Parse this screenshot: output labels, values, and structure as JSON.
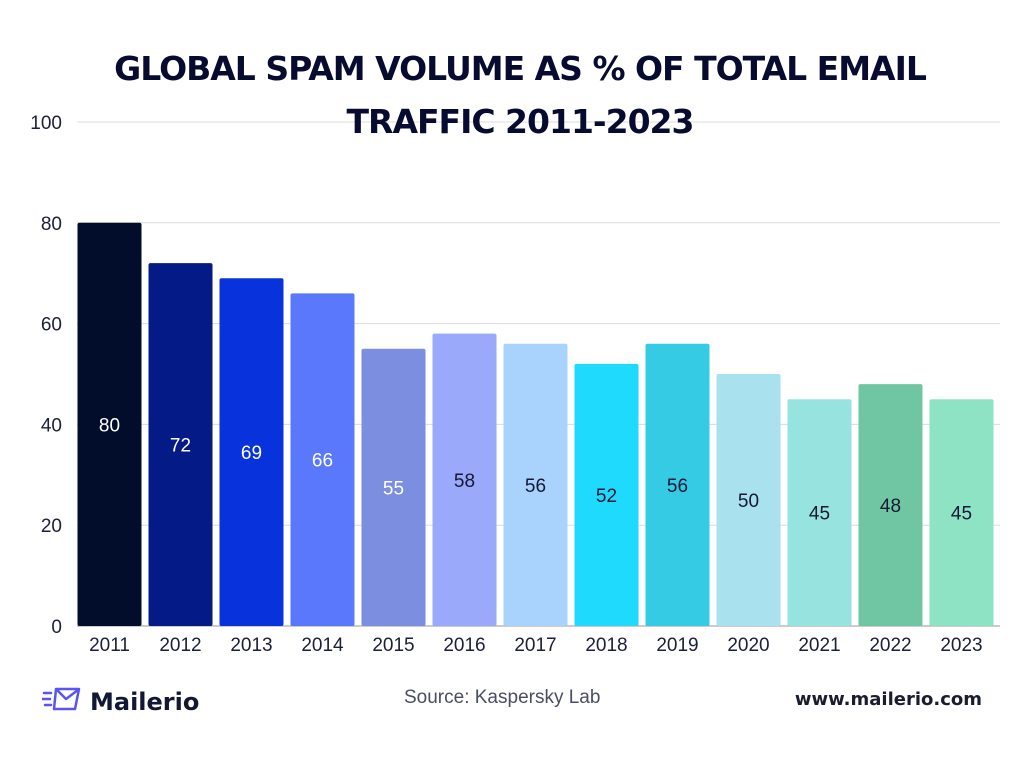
{
  "chart_data": {
    "type": "bar",
    "title": "GLOBAL SPAM VOLUME AS % OF TOTAL EMAIL TRAFFIC 2011-2023",
    "categories": [
      "2011",
      "2012",
      "2013",
      "2014",
      "2015",
      "2016",
      "2017",
      "2018",
      "2019",
      "2020",
      "2021",
      "2022",
      "2023"
    ],
    "values": [
      80,
      72,
      69,
      66,
      55,
      58,
      56,
      52,
      56,
      50,
      45,
      48,
      45
    ],
    "colors": [
      "#020c2b",
      "#041a87",
      "#0832dc",
      "#5a78fb",
      "#7c8edf",
      "#9aa9fa",
      "#a9d3fc",
      "#1fdafc",
      "#35cbe5",
      "#a9e1ee",
      "#97e3df",
      "#70c6a3",
      "#8ee3c4"
    ],
    "label_colors": [
      "#ffffff",
      "#ffffff",
      "#ffffff",
      "#ffffff",
      "#ffffff",
      "#141833",
      "#141833",
      "#141833",
      "#141833",
      "#141833",
      "#141833",
      "#141833",
      "#141833"
    ],
    "ylim": [
      0,
      100
    ],
    "yticks": [
      0,
      20,
      40,
      60,
      80,
      100
    ],
    "grid": true,
    "xlabel": "",
    "ylabel": ""
  },
  "footer": {
    "brand": "Mailerio",
    "brand_icon": "envelope-icon",
    "source": "Source: Kaspersky Lab",
    "website": "www.mailerio.com"
  }
}
